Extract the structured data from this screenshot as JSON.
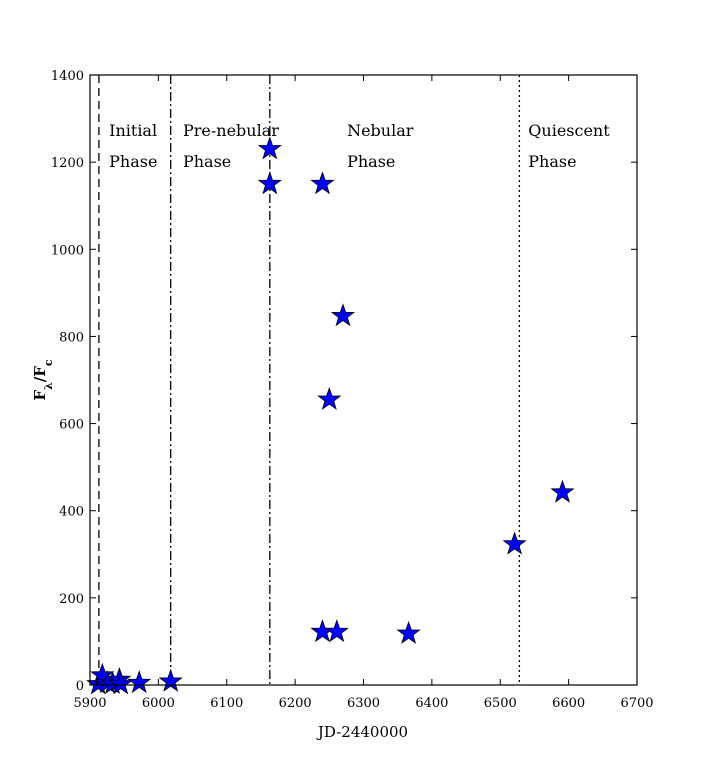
{
  "chart_data": {
    "type": "scatter",
    "xlabel": "JD-2440000",
    "ylabel": "Fλ/Fc",
    "xlim": [
      5900,
      6700
    ],
    "ylim": [
      0,
      1400
    ],
    "x_ticks": [
      "5900",
      "6000",
      "6100",
      "6200",
      "6300",
      "6400",
      "6500",
      "6600",
      "6700"
    ],
    "y_ticks": [
      "0",
      "200",
      "400",
      "600",
      "800",
      "1000",
      "1200",
      "1400"
    ],
    "marker": "star",
    "marker_color": "#0000ff",
    "grid": false,
    "points": [
      {
        "x": 5912,
        "y": 2
      },
      {
        "x": 5918,
        "y": 22
      },
      {
        "x": 5925,
        "y": 5
      },
      {
        "x": 5933,
        "y": 3
      },
      {
        "x": 5943,
        "y": 12
      },
      {
        "x": 5945,
        "y": 2
      },
      {
        "x": 5972,
        "y": 5
      },
      {
        "x": 6018,
        "y": 8
      },
      {
        "x": 6163,
        "y": 1230
      },
      {
        "x": 6163,
        "y": 1150
      },
      {
        "x": 6240,
        "y": 1150
      },
      {
        "x": 6270,
        "y": 847
      },
      {
        "x": 6250,
        "y": 655
      },
      {
        "x": 6240,
        "y": 122
      },
      {
        "x": 6261,
        "y": 122
      },
      {
        "x": 6366,
        "y": 118
      },
      {
        "x": 6521,
        "y": 323
      },
      {
        "x": 6591,
        "y": 442
      }
    ],
    "phase_lines": [
      {
        "x": 5913,
        "style": "dashed"
      },
      {
        "x": 6018,
        "style": "dashdot"
      },
      {
        "x": 6163,
        "style": "dashdot"
      },
      {
        "x": 6528,
        "style": "dotted"
      }
    ],
    "annotations": [
      {
        "line1": "Initial",
        "line2": "Phase",
        "x": 5928
      },
      {
        "line1": "Pre-nebular",
        "line2": "Phase",
        "x": 6036
      },
      {
        "line1": "Nebular",
        "line2": "Phase",
        "x": 6276
      },
      {
        "line1": "Quiescent",
        "line2": "Phase",
        "x": 6541
      }
    ]
  }
}
